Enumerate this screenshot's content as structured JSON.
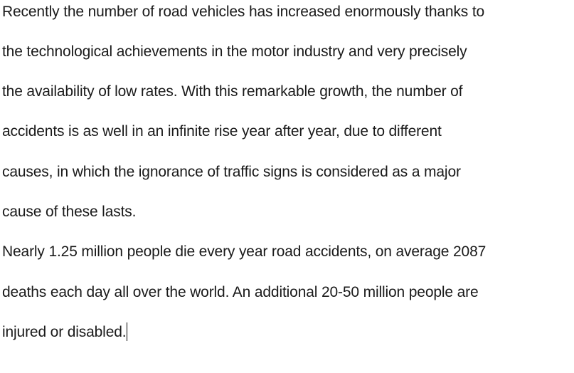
{
  "document": {
    "paragraphs": [
      {
        "lines": [
          "Recently the number of road vehicles has increased enormously thanks to",
          "the technological achievements in the motor industry and very precisely",
          "the availability of low rates. With this remarkable growth, the number of",
          "accidents is as well in an infinite rise year after year, due to different",
          "causes, in which the ignorance of traffic signs is considered as a major",
          "cause of these lasts."
        ]
      },
      {
        "lines": [
          "Nearly 1.25 million people die every year road accidents, on average 2087",
          "deaths each day all over the world. An additional 20-50 million people are",
          "injured or disabled."
        ]
      }
    ]
  }
}
